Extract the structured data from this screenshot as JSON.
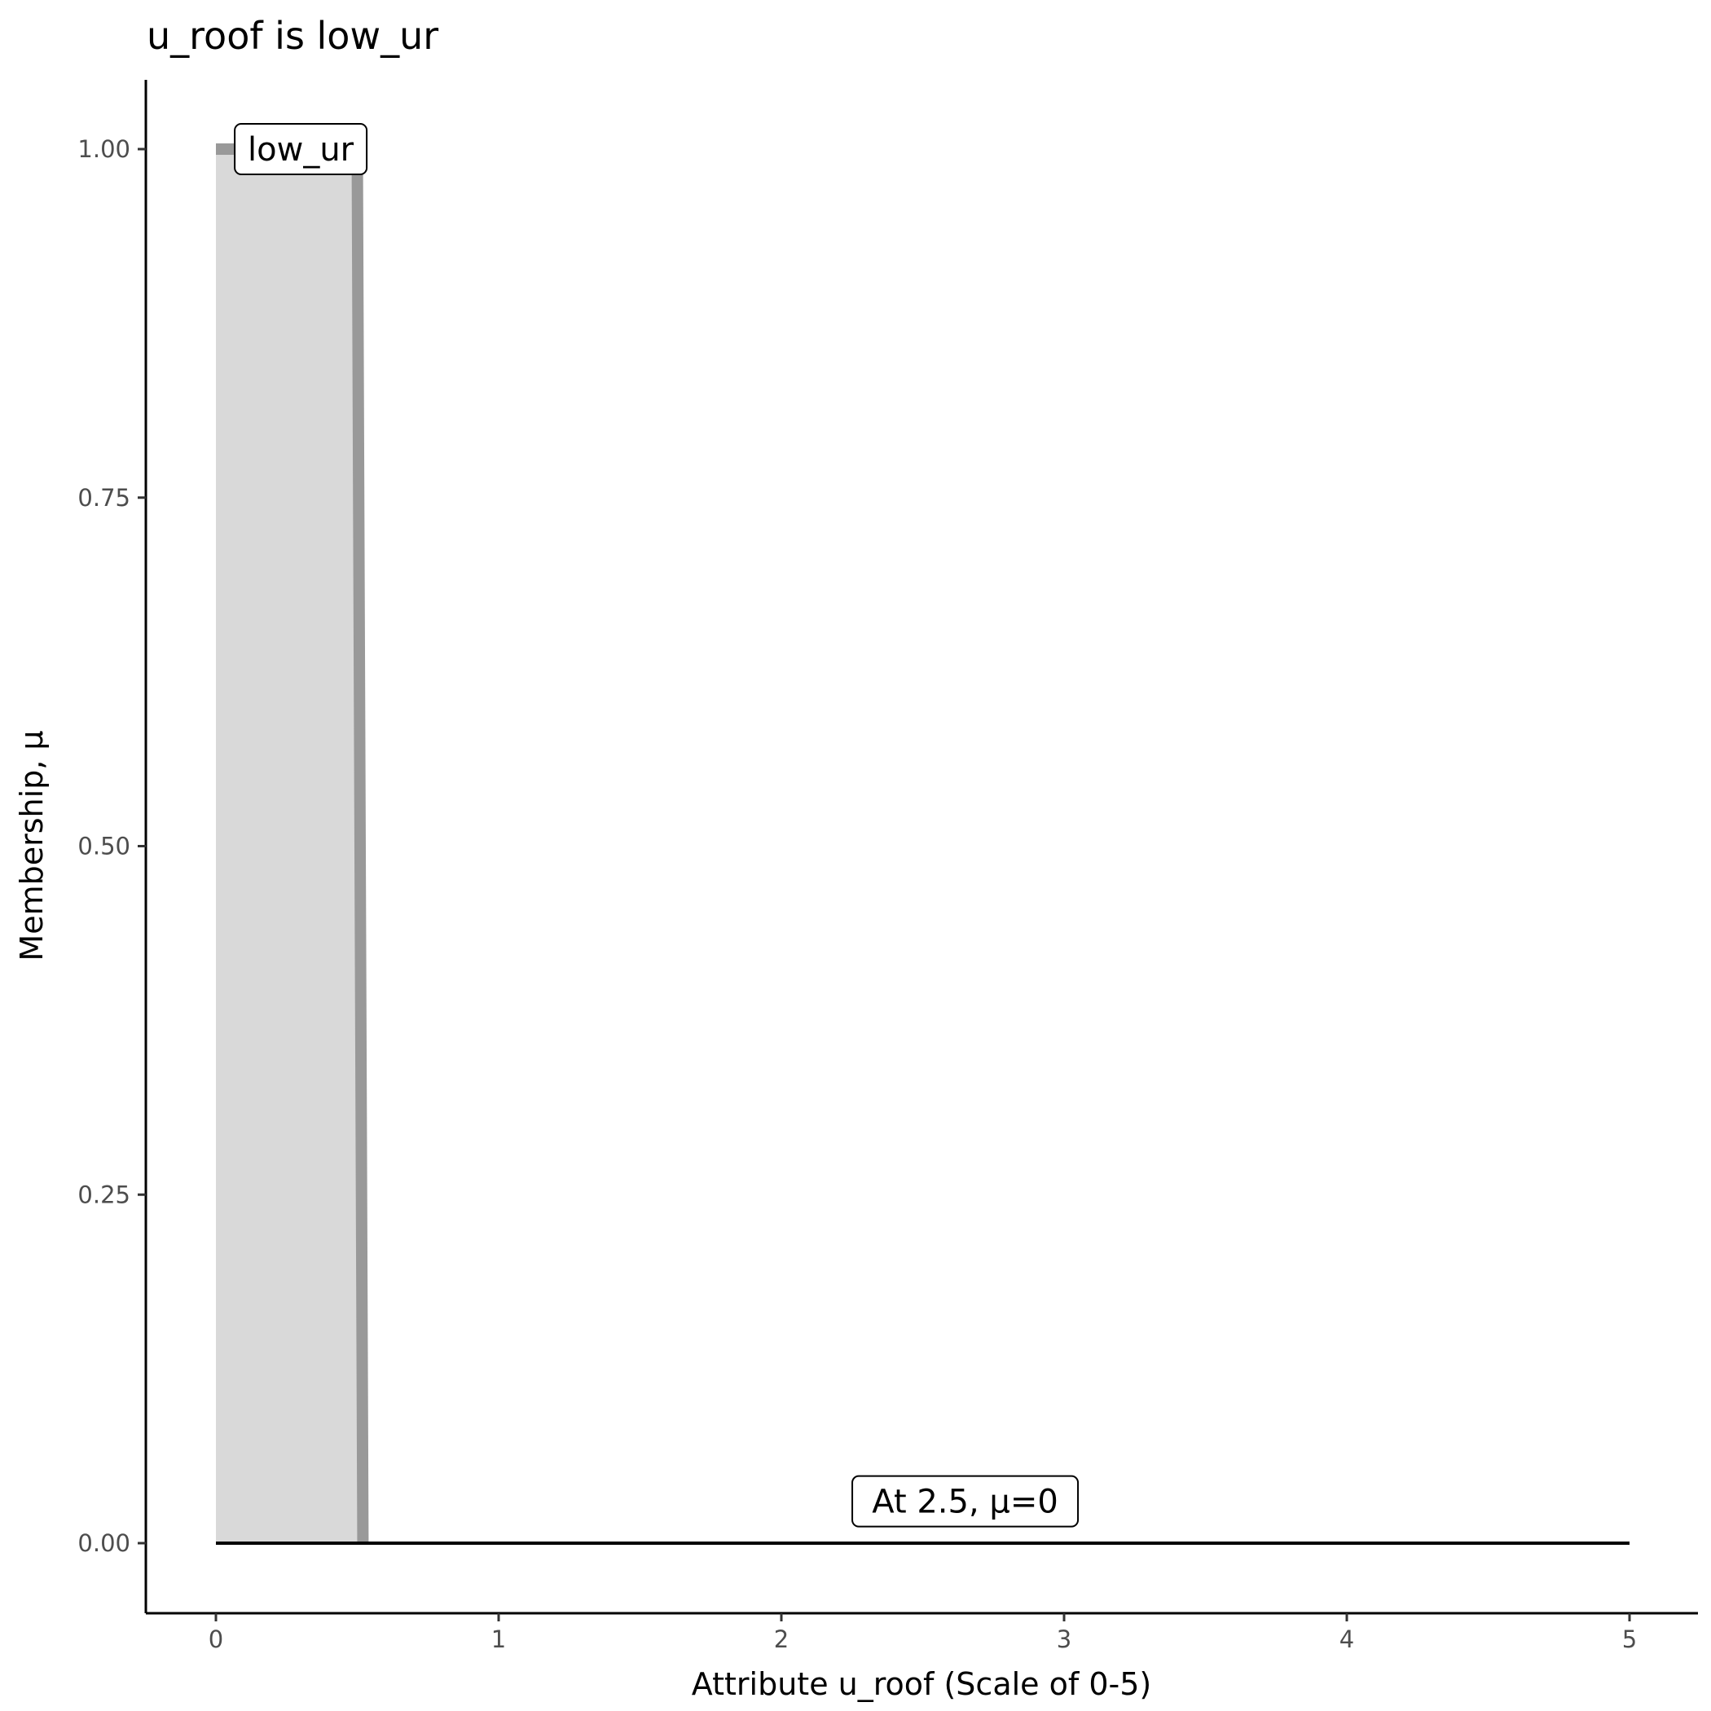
{
  "chart_data": {
    "type": "area",
    "title": "u_roof is low_ur",
    "xlabel": "Attribute u_roof (Scale of 0-5)",
    "ylabel": "Membership, μ",
    "xlim": [
      -0.25,
      5.25
    ],
    "ylim": [
      -0.05,
      1.05
    ],
    "x_ticks": [
      0,
      1,
      2,
      3,
      4,
      5
    ],
    "x_tick_labels": [
      "0",
      "1",
      "2",
      "3",
      "4",
      "5"
    ],
    "y_ticks": [
      0,
      0.25,
      0.5,
      0.75,
      1
    ],
    "y_tick_labels": [
      "0.00",
      "0.25",
      "0.50",
      "0.75",
      "1.00"
    ],
    "grid": false,
    "membership_series": {
      "name": "low_ur",
      "x": [
        0,
        0.5,
        0.5,
        5
      ],
      "y": [
        1,
        1,
        0,
        0
      ]
    },
    "evaluation_line": {
      "x": [
        0,
        5
      ],
      "y": [
        0,
        0
      ]
    },
    "annotations": [
      {
        "text": "low_ur",
        "x": 0.3,
        "y": 1.0
      },
      {
        "text": "At 2.5, μ=0",
        "x": 2.65,
        "y": 0.03
      }
    ],
    "colors": {
      "fill": "#d9d9d9",
      "membership_line": "#999999",
      "evaluation_line": "#000000"
    }
  }
}
